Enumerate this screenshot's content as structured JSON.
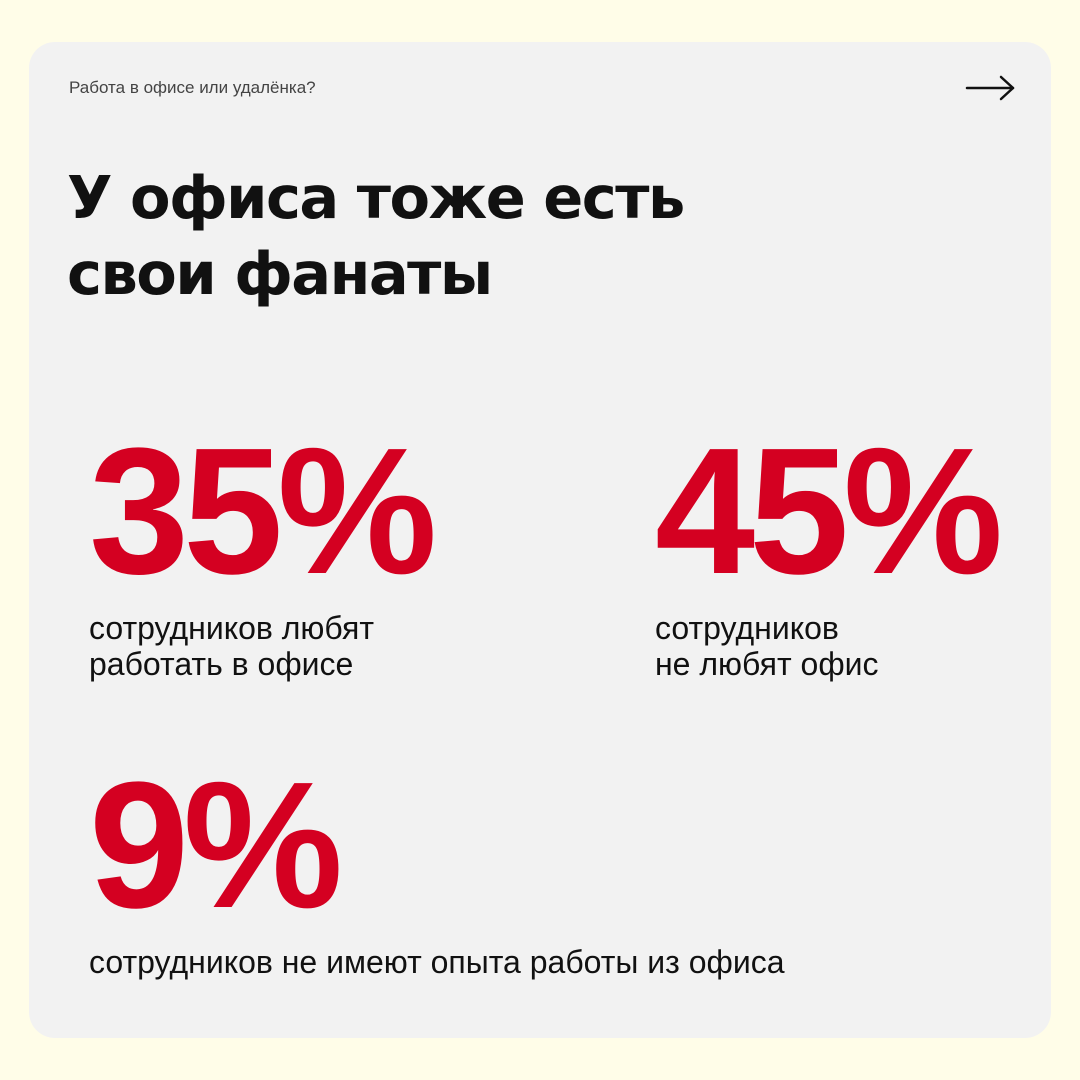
{
  "colors": {
    "page_background": "#fffde8",
    "card_background": "#f2f2f2",
    "accent": "#d40021",
    "text": "#111111"
  },
  "header": {
    "eyebrow": "Работа в офисе или удалёнка?",
    "next_icon": "arrow-right-icon"
  },
  "headline": "У офиса тоже есть свои фанаты",
  "stats": [
    {
      "value": "35%",
      "description": "сотрудников любят\nработать в офисе"
    },
    {
      "value": "45%",
      "description": "сотрудников\nне любят офис"
    },
    {
      "value": "9%",
      "description": "сотрудников не имеют опыта работы из офиса"
    }
  ]
}
